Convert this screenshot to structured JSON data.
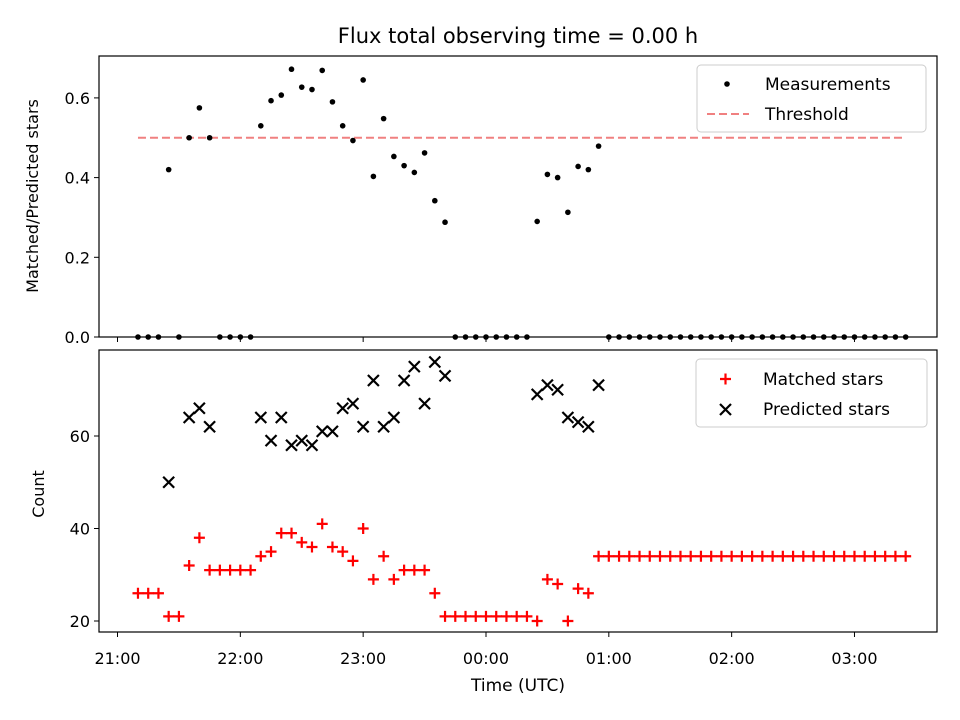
{
  "chart_data": [
    {
      "type": "scatter",
      "title": "Flux total observing time = 0.00 h",
      "xlabel": "",
      "ylabel": "Matched/Predicted stars",
      "xlim": [
        "21:00",
        "03:40"
      ],
      "ylim": [
        0,
        0.7
      ],
      "yticks": [
        0.0,
        0.2,
        0.4,
        0.6
      ],
      "yticklabels": [
        "0.0",
        "0.2",
        "0.4",
        "0.6"
      ],
      "grid": false,
      "legend": {
        "position": "top-right",
        "entries": [
          "Measurements",
          "Threshold"
        ]
      },
      "series": [
        {
          "name": "Measurements",
          "marker": "dot",
          "color": "#000000",
          "points": [
            [
              "21:10",
              0.0
            ],
            [
              "21:15",
              0.0
            ],
            [
              "21:20",
              0.0
            ],
            [
              "21:25",
              0.42
            ],
            [
              "21:30",
              0.0
            ],
            [
              "21:35",
              0.5
            ],
            [
              "21:40",
              0.575
            ],
            [
              "21:45",
              0.5
            ],
            [
              "21:50",
              0.0
            ],
            [
              "21:55",
              0.0
            ],
            [
              "22:00",
              0.0
            ],
            [
              "22:05",
              0.0
            ],
            [
              "22:10",
              0.53
            ],
            [
              "22:15",
              0.593
            ],
            [
              "22:20",
              0.607
            ],
            [
              "22:25",
              0.672
            ],
            [
              "22:30",
              0.627
            ],
            [
              "22:35",
              0.621
            ],
            [
              "22:40",
              0.669
            ],
            [
              "22:45",
              0.59
            ],
            [
              "22:50",
              0.53
            ],
            [
              "22:55",
              0.493
            ],
            [
              "23:00",
              0.645
            ],
            [
              "23:05",
              0.403
            ],
            [
              "23:10",
              0.548
            ],
            [
              "23:15",
              0.453
            ],
            [
              "23:20",
              0.43
            ],
            [
              "23:25",
              0.413
            ],
            [
              "23:30",
              0.462
            ],
            [
              "23:35",
              0.342
            ],
            [
              "23:40",
              0.288
            ],
            [
              "23:45",
              0.0
            ],
            [
              "23:50",
              0.0
            ],
            [
              "23:55",
              0.0
            ],
            [
              "00:00",
              0.0
            ],
            [
              "00:05",
              0.0
            ],
            [
              "00:10",
              0.0
            ],
            [
              "00:15",
              0.0
            ],
            [
              "00:20",
              0.0
            ],
            [
              "00:25",
              0.29
            ],
            [
              "00:30",
              0.408
            ],
            [
              "00:35",
              0.4
            ],
            [
              "00:40",
              0.313
            ],
            [
              "00:45",
              0.428
            ],
            [
              "00:50",
              0.42
            ],
            [
              "00:55",
              0.479
            ],
            [
              "01:00",
              0.0
            ],
            [
              "01:05",
              0.0
            ],
            [
              "01:10",
              0.0
            ],
            [
              "01:15",
              0.0
            ],
            [
              "01:20",
              0.0
            ],
            [
              "01:25",
              0.0
            ],
            [
              "01:30",
              0.0
            ],
            [
              "01:35",
              0.0
            ],
            [
              "01:40",
              0.0
            ],
            [
              "01:45",
              0.0
            ],
            [
              "01:50",
              0.0
            ],
            [
              "01:55",
              0.0
            ],
            [
              "02:00",
              0.0
            ],
            [
              "02:05",
              0.0
            ],
            [
              "02:10",
              0.0
            ],
            [
              "02:15",
              0.0
            ],
            [
              "02:20",
              0.0
            ],
            [
              "02:25",
              0.0
            ],
            [
              "02:30",
              0.0
            ],
            [
              "02:35",
              0.0
            ],
            [
              "02:40",
              0.0
            ],
            [
              "02:45",
              0.0
            ],
            [
              "02:50",
              0.0
            ],
            [
              "02:55",
              0.0
            ],
            [
              "03:00",
              0.0
            ],
            [
              "03:05",
              0.0
            ],
            [
              "03:10",
              0.0
            ],
            [
              "03:15",
              0.0
            ],
            [
              "03:20",
              0.0
            ],
            [
              "03:25",
              0.0
            ]
          ]
        },
        {
          "name": "Threshold",
          "style": "dashed-line",
          "color": "#f08080",
          "value": 0.5,
          "x_range": [
            "21:10",
            "03:25"
          ]
        }
      ]
    },
    {
      "type": "scatter",
      "xlabel": "Time (UTC)",
      "ylabel": "Count",
      "xlim": [
        "21:00",
        "03:40"
      ],
      "xticks": [
        "21:00",
        "22:00",
        "23:00",
        "00:00",
        "01:00",
        "02:00",
        "03:00"
      ],
      "ylim": [
        17.5,
        77.5
      ],
      "yticks": [
        20,
        40,
        60
      ],
      "grid": false,
      "legend": {
        "position": "top-right",
        "entries": [
          "Matched stars",
          "Predicted stars"
        ]
      },
      "series": [
        {
          "name": "Matched stars",
          "marker": "plus",
          "color": "#ff0000",
          "points": [
            [
              "21:10",
              26
            ],
            [
              "21:15",
              26
            ],
            [
              "21:20",
              26
            ],
            [
              "21:25",
              21
            ],
            [
              "21:30",
              21
            ],
            [
              "21:35",
              32
            ],
            [
              "21:40",
              38
            ],
            [
              "21:45",
              31
            ],
            [
              "21:50",
              31
            ],
            [
              "21:55",
              31
            ],
            [
              "22:00",
              31
            ],
            [
              "22:05",
              31
            ],
            [
              "22:10",
              34
            ],
            [
              "22:15",
              35
            ],
            [
              "22:20",
              39
            ],
            [
              "22:25",
              39
            ],
            [
              "22:30",
              37
            ],
            [
              "22:35",
              36
            ],
            [
              "22:40",
              41
            ],
            [
              "22:45",
              36
            ],
            [
              "22:50",
              35
            ],
            [
              "22:55",
              33
            ],
            [
              "23:00",
              40
            ],
            [
              "23:05",
              29
            ],
            [
              "23:10",
              34
            ],
            [
              "23:15",
              29
            ],
            [
              "23:20",
              31
            ],
            [
              "23:25",
              31
            ],
            [
              "23:30",
              31
            ],
            [
              "23:35",
              26
            ],
            [
              "23:40",
              21
            ],
            [
              "23:45",
              21
            ],
            [
              "23:50",
              21
            ],
            [
              "23:55",
              21
            ],
            [
              "00:00",
              21
            ],
            [
              "00:05",
              21
            ],
            [
              "00:10",
              21
            ],
            [
              "00:15",
              21
            ],
            [
              "00:20",
              21
            ],
            [
              "00:25",
              20
            ],
            [
              "00:30",
              29
            ],
            [
              "00:35",
              28
            ],
            [
              "00:40",
              20
            ],
            [
              "00:45",
              27
            ],
            [
              "00:50",
              26
            ],
            [
              "00:55",
              34
            ],
            [
              "01:00",
              34
            ],
            [
              "01:05",
              34
            ],
            [
              "01:10",
              34
            ],
            [
              "01:15",
              34
            ],
            [
              "01:20",
              34
            ],
            [
              "01:25",
              34
            ],
            [
              "01:30",
              34
            ],
            [
              "01:35",
              34
            ],
            [
              "01:40",
              34
            ],
            [
              "01:45",
              34
            ],
            [
              "01:50",
              34
            ],
            [
              "01:55",
              34
            ],
            [
              "02:00",
              34
            ],
            [
              "02:05",
              34
            ],
            [
              "02:10",
              34
            ],
            [
              "02:15",
              34
            ],
            [
              "02:20",
              34
            ],
            [
              "02:25",
              34
            ],
            [
              "02:30",
              34
            ],
            [
              "02:35",
              34
            ],
            [
              "02:40",
              34
            ],
            [
              "02:45",
              34
            ],
            [
              "02:50",
              34
            ],
            [
              "02:55",
              34
            ],
            [
              "03:00",
              34
            ],
            [
              "03:05",
              34
            ],
            [
              "03:10",
              34
            ],
            [
              "03:15",
              34
            ],
            [
              "03:20",
              34
            ],
            [
              "03:25",
              34
            ]
          ]
        },
        {
          "name": "Predicted stars",
          "marker": "x",
          "color": "#000000",
          "points": [
            [
              "21:25",
              50
            ],
            [
              "21:35",
              64
            ],
            [
              "21:40",
              66
            ],
            [
              "21:45",
              62
            ],
            [
              "22:10",
              64
            ],
            [
              "22:15",
              59
            ],
            [
              "22:20",
              64
            ],
            [
              "22:25",
              58
            ],
            [
              "22:30",
              59
            ],
            [
              "22:35",
              58
            ],
            [
              "22:40",
              61
            ],
            [
              "22:45",
              61
            ],
            [
              "22:50",
              66
            ],
            [
              "22:55",
              67
            ],
            [
              "23:00",
              62
            ],
            [
              "23:05",
              72
            ],
            [
              "23:10",
              62
            ],
            [
              "23:15",
              64
            ],
            [
              "23:20",
              72
            ],
            [
              "23:25",
              75
            ],
            [
              "23:30",
              67
            ],
            [
              "23:35",
              76
            ],
            [
              "23:40",
              73
            ],
            [
              "00:25",
              69
            ],
            [
              "00:30",
              71
            ],
            [
              "00:35",
              70
            ],
            [
              "00:40",
              64
            ],
            [
              "00:45",
              63
            ],
            [
              "00:50",
              62
            ],
            [
              "00:55",
              71
            ]
          ]
        }
      ]
    }
  ]
}
